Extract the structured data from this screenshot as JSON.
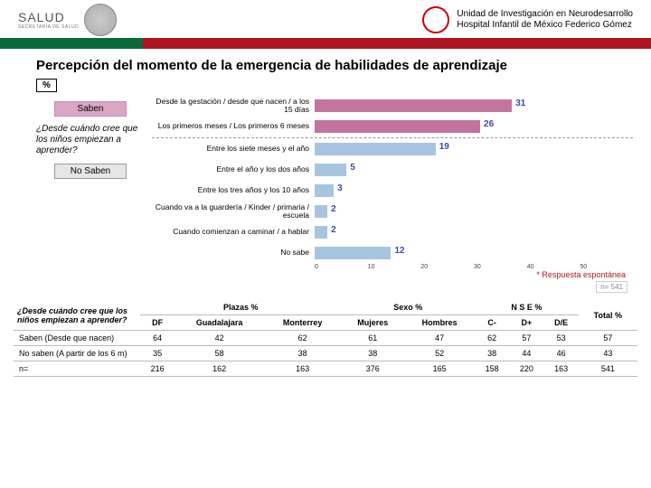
{
  "header": {
    "brand": "SALUD",
    "brand_sub": "SECRETARÍA DE SALUD",
    "unit_line1": "Unidad de Investigación en Neurodesarrollo",
    "unit_line2": "Hospital Infantil de México Federico Gómez"
  },
  "title": "Percepción del momento de la emergencia de habilidades de aprendizaje",
  "pct_label": "%",
  "left_question": "¿Desde cuándo cree que los niños empiezan a aprender?",
  "tag_saben": "Saben",
  "tag_nosaben": "No Saben",
  "chart": {
    "type": "bar-horizontal",
    "xlim": [
      0,
      50
    ],
    "xticks": [
      0,
      10,
      20,
      30,
      40,
      50
    ],
    "value_color": "#3b4ba0",
    "groups": [
      {
        "color": "#c4739f",
        "rows": [
          {
            "label": "Desde la gestación / desde que nacen / a los 15 días",
            "value": 31
          },
          {
            "label": "Los primeros meses / Los primeros 6 meses",
            "value": 26
          }
        ]
      },
      {
        "color": "#a8c5e0",
        "rows": [
          {
            "label": "Entre los siete meses y el año",
            "value": 19
          },
          {
            "label": "Entre el año y los dos años",
            "value": 5
          },
          {
            "label": "Entre los tres años y los 10 años",
            "value": 3
          },
          {
            "label": "Cuando va a la guardería / Kinder / primaria / escuela",
            "value": 2
          },
          {
            "label": "Cuando comienzan a caminar / a hablar",
            "value": 2
          },
          {
            "label": "No sabe",
            "value": 12
          }
        ]
      }
    ]
  },
  "footnote": "* Respuesta espontánea",
  "n_note": "n= 541",
  "table": {
    "question": "¿Desde cuándo cree que los niños empiezan a aprender?",
    "group_headers": {
      "plazas": "Plazas\n%",
      "sexo": "Sexo\n%",
      "nse": "N S E\n%",
      "total": "Total\n%"
    },
    "columns": [
      "DF",
      "Guadalajara",
      "Monterrey",
      "Mujeres",
      "Hombres",
      "C-",
      "D+",
      "D/E"
    ],
    "rows": [
      {
        "label": "Saben (Desde que nacen)",
        "cells": [
          64,
          42,
          62,
          61,
          47,
          62,
          57,
          53
        ],
        "total": 57
      },
      {
        "label": "No saben (A partir de los 6 m)",
        "cells": [
          35,
          58,
          38,
          38,
          52,
          38,
          44,
          46
        ],
        "total": 43
      },
      {
        "label": "n=",
        "cells": [
          216,
          162,
          163,
          376,
          165,
          158,
          220,
          163
        ],
        "total": 541
      }
    ]
  }
}
